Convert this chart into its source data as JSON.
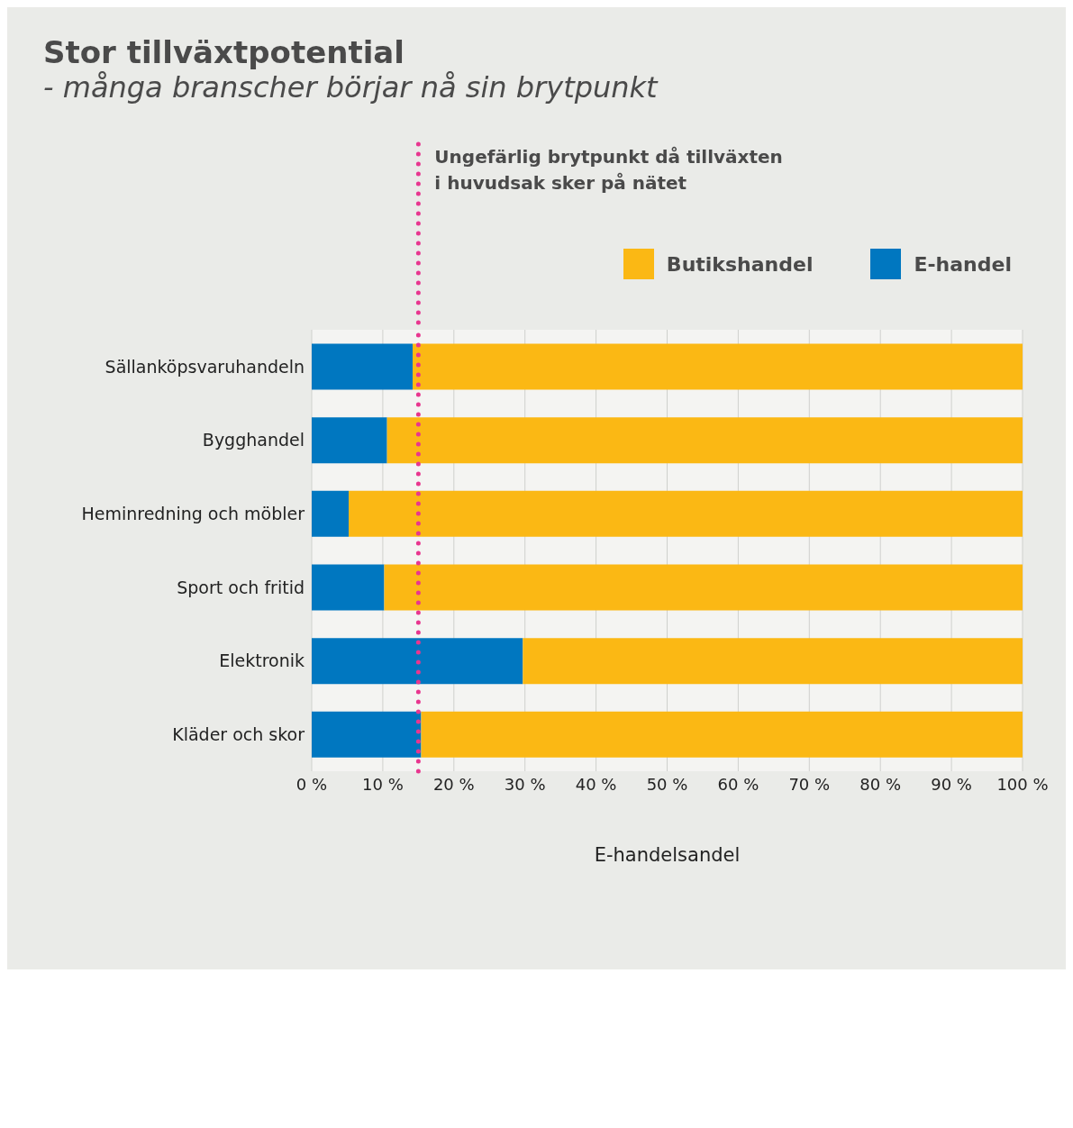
{
  "chart_data": {
    "type": "bar",
    "orientation": "horizontal",
    "stacked": true,
    "title": "Stor tillväxtpotential",
    "subtitle": "- många branscher börjar nå sin brytpunkt",
    "xlabel": "E-handelsandel",
    "categories": [
      "Sällanköpsvaruhandeln",
      "Bygghandel",
      "Heminredning och möbler",
      "Sport och fritid",
      "Elektronik",
      "Kläder och skor"
    ],
    "series": [
      {
        "name": "E-handel",
        "color": "#0077c0",
        "values": [
          14.2,
          10.6,
          5.2,
          10.2,
          29.7,
          15.4
        ]
      },
      {
        "name": "Butikshandel",
        "color": "#fbb814",
        "values": [
          85.8,
          89.4,
          94.8,
          89.8,
          70.3,
          84.6
        ]
      }
    ],
    "xlim": [
      0,
      100
    ],
    "xticks": [
      {
        "value": 0,
        "label": "0 %"
      },
      {
        "value": 10,
        "label": "10 %"
      },
      {
        "value": 20,
        "label": "20 %"
      },
      {
        "value": 30,
        "label": "30 %"
      },
      {
        "value": 40,
        "label": "40 %"
      },
      {
        "value": 50,
        "label": "50 %"
      },
      {
        "value": 60,
        "label": "60 %"
      },
      {
        "value": 70,
        "label": "70 %"
      },
      {
        "value": 80,
        "label": "80 %"
      },
      {
        "value": 90,
        "label": "90 %"
      },
      {
        "value": 100,
        "label": "100 %"
      }
    ],
    "ref_lines": [
      {
        "axis": "x",
        "value": 15,
        "label": "Ungefärlig brytpunkt då tillväxten i huvudsak sker på nätet",
        "color": "#e8368f",
        "line_style": "dotted"
      }
    ],
    "grid": "x",
    "legend": "top right"
  }
}
